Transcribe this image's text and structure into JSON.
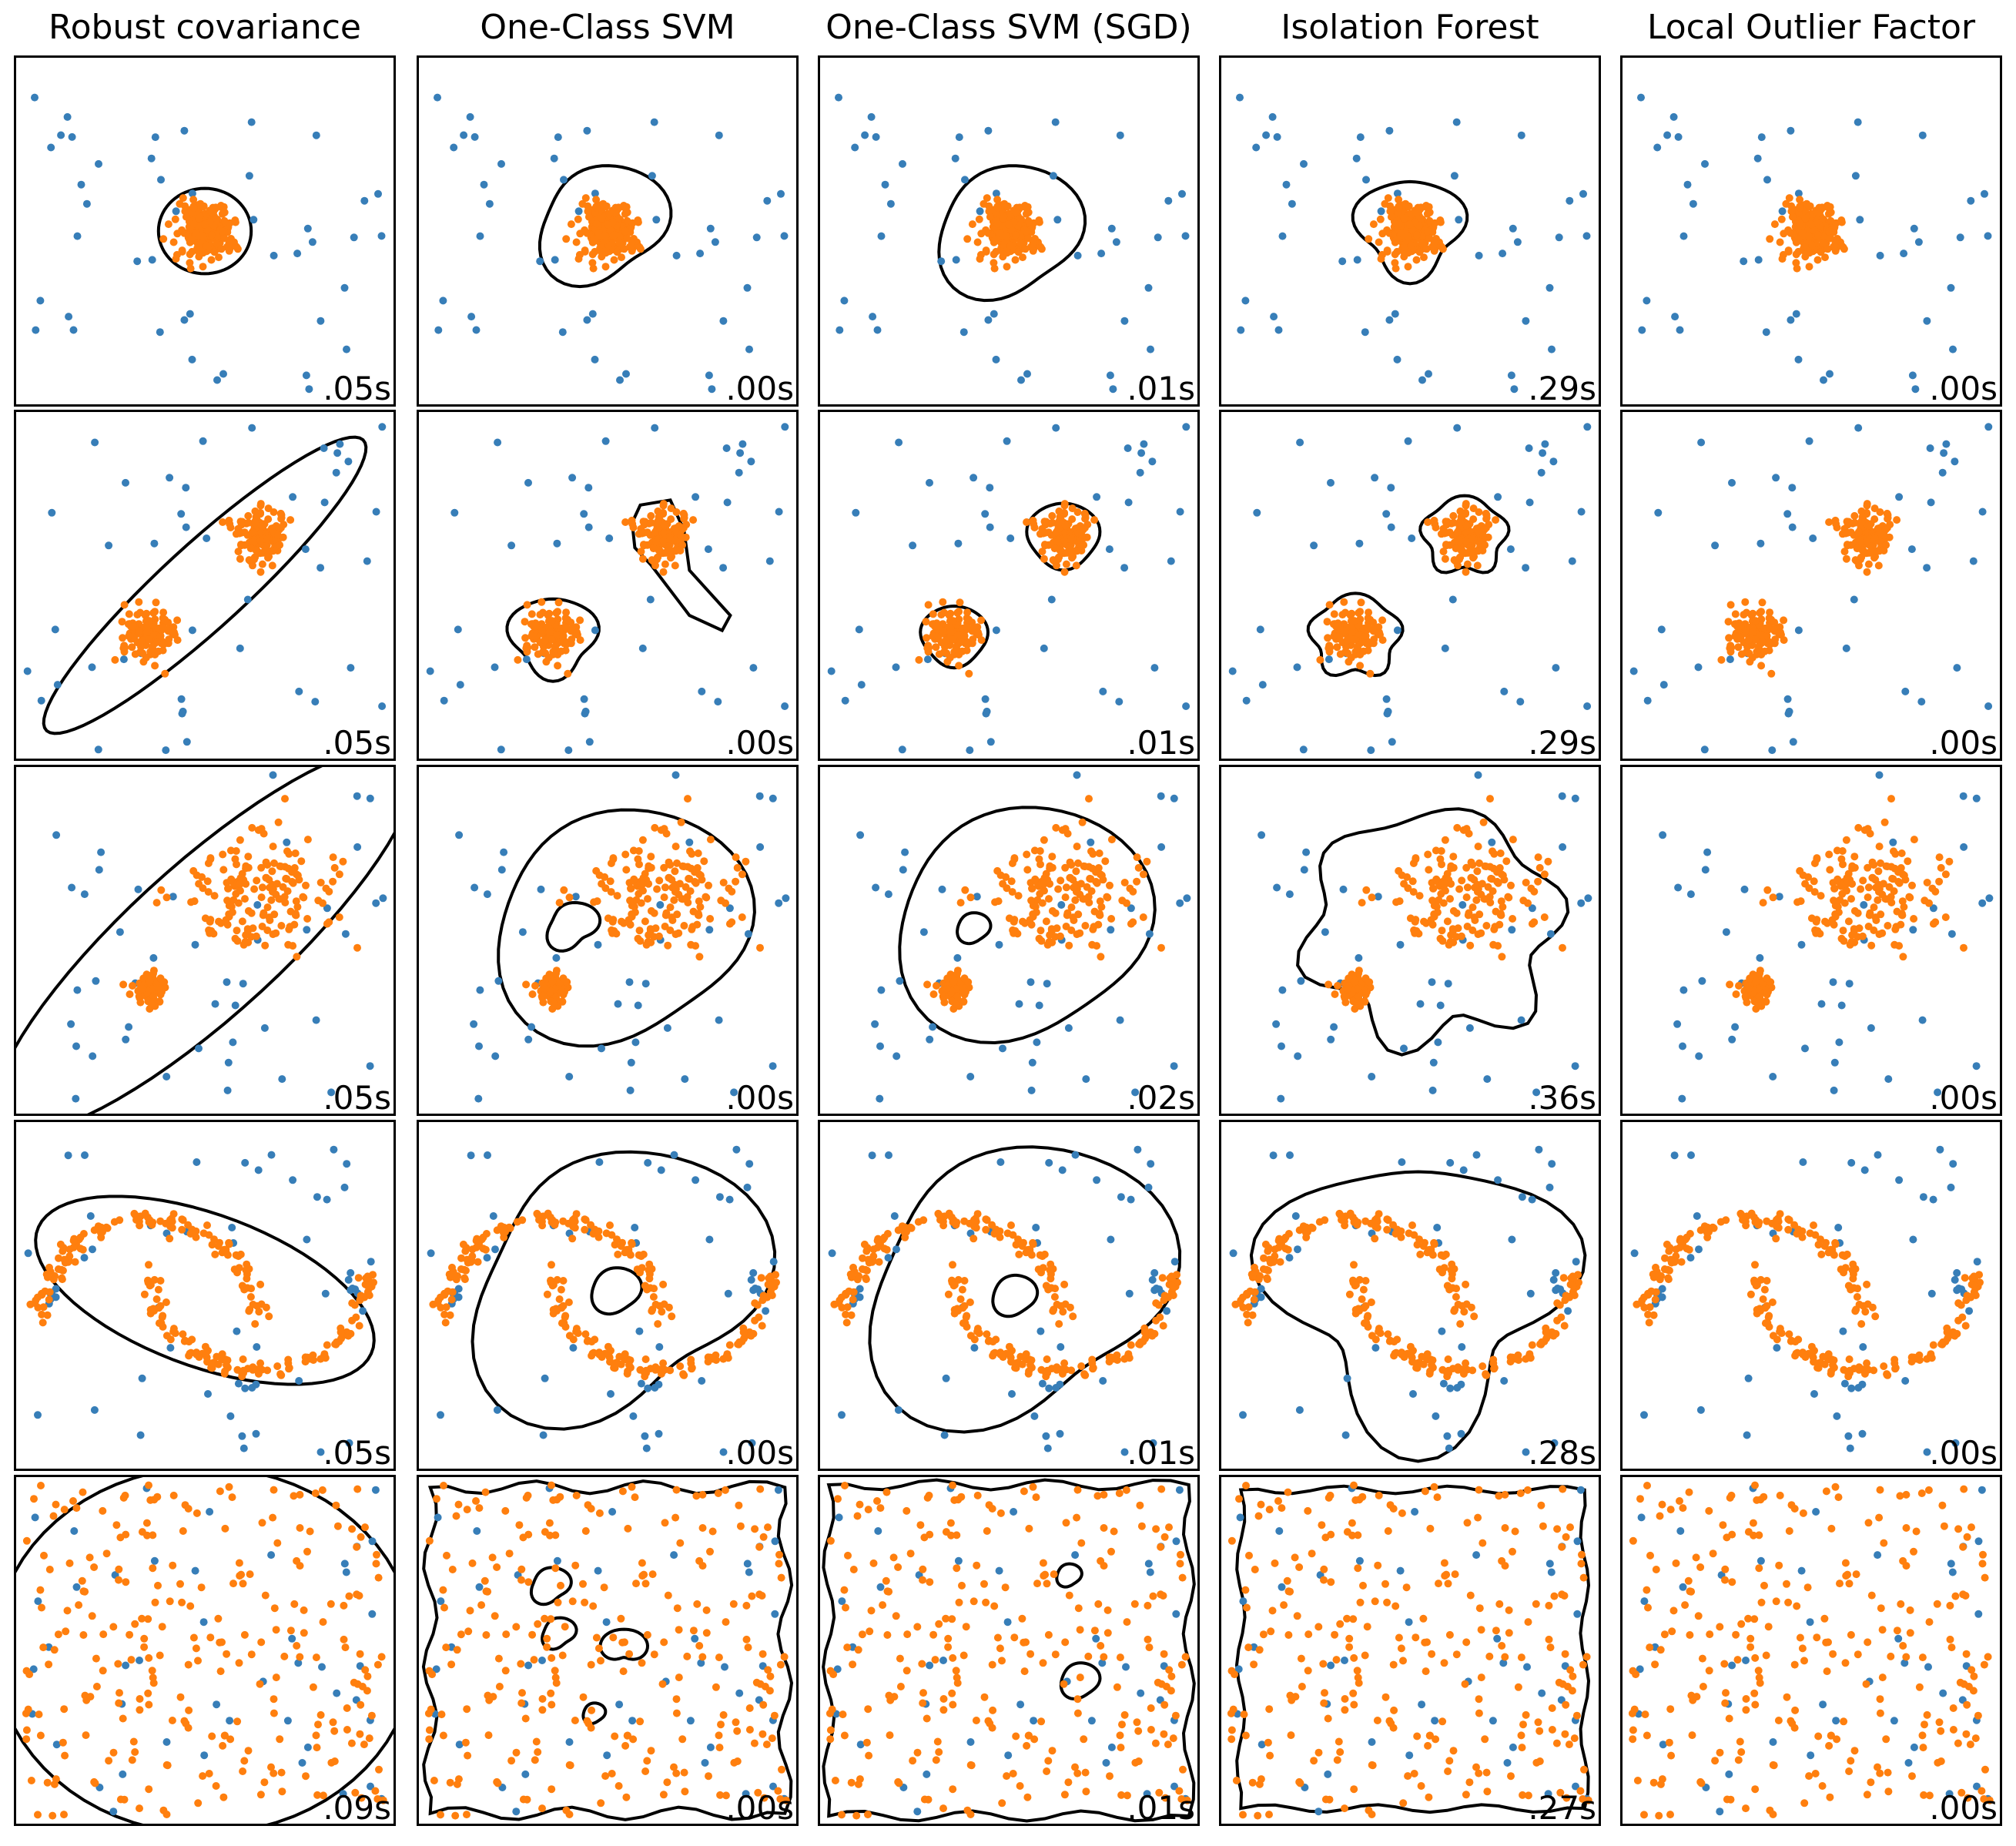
{
  "colors": {
    "inlier": "#ff7f0e",
    "outlier": "#377eb8",
    "boundary": "#000000",
    "frame": "#000000"
  },
  "chart_data": {
    "type": "scatter",
    "grid": false,
    "axis_range": {
      "x": [
        -7,
        7
      ],
      "y": [
        -7,
        7
      ]
    },
    "titles": [
      "Robust covariance",
      "One-Class SVM",
      "One-Class SVM (SGD)",
      "Isolation Forest",
      "Local Outlier Factor"
    ],
    "datasets": [
      {
        "inliers": "single blob at (0,0)",
        "outliers": "uniform random"
      },
      {
        "inliers": "two blobs at (-2,-2) and (2,2)",
        "outliers": "uniform random"
      },
      {
        "inliers": "blobs at (2,2) std 1.5 and (-2,-2) std 0.3",
        "outliers": "uniform random"
      },
      {
        "inliers": "two moons",
        "outliers": "uniform random"
      },
      {
        "inliers": "uniform random",
        "outliers": "uniform random"
      }
    ],
    "times": [
      [
        ".05s",
        ".00s",
        ".01s",
        ".29s",
        ".00s"
      ],
      [
        ".05s",
        ".00s",
        ".01s",
        ".29s",
        ".00s"
      ],
      [
        ".05s",
        ".00s",
        ".02s",
        ".36s",
        ".00s"
      ],
      [
        ".05s",
        ".00s",
        ".01s",
        ".28s",
        ".00s"
      ],
      [
        ".09s",
        ".00s",
        ".01s",
        ".27s",
        ".00s"
      ]
    ]
  }
}
